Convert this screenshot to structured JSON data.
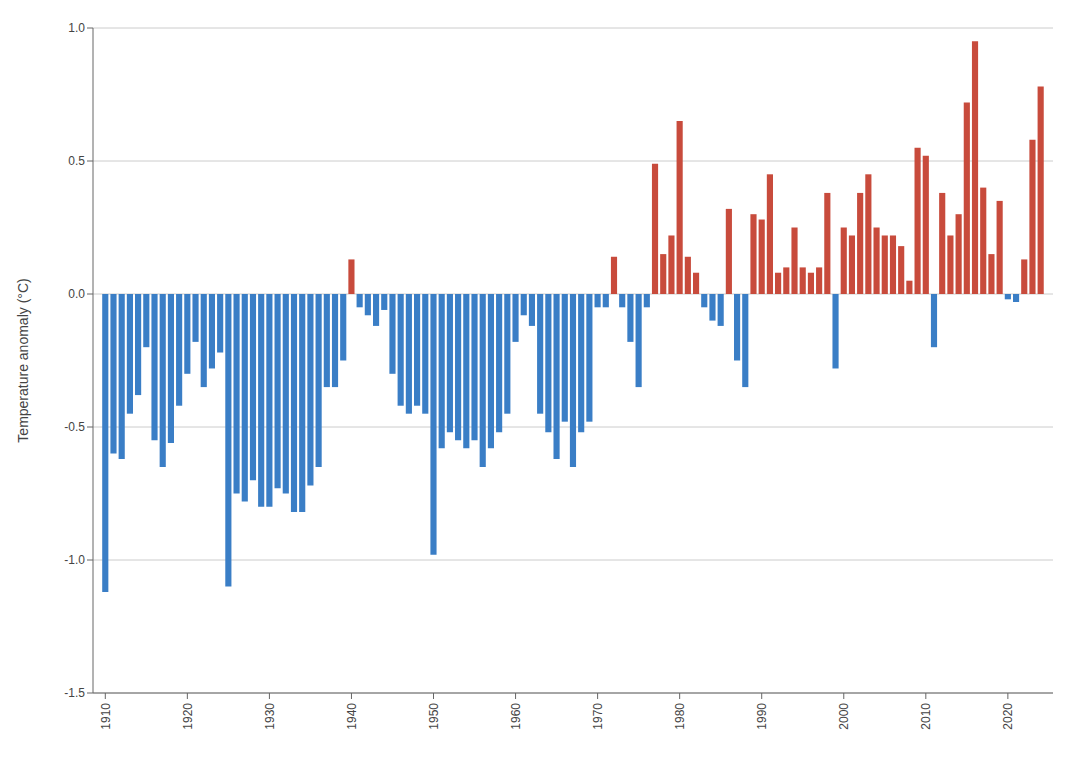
{
  "chart_data": {
    "type": "bar",
    "ylabel": "Temperature anomaly (°C)",
    "x": [
      1910,
      1911,
      1912,
      1913,
      1914,
      1915,
      1916,
      1917,
      1918,
      1919,
      1920,
      1921,
      1922,
      1923,
      1924,
      1925,
      1926,
      1927,
      1928,
      1929,
      1930,
      1931,
      1932,
      1933,
      1934,
      1935,
      1936,
      1937,
      1938,
      1939,
      1940,
      1941,
      1942,
      1943,
      1944,
      1945,
      1946,
      1947,
      1948,
      1949,
      1950,
      1951,
      1952,
      1953,
      1954,
      1955,
      1956,
      1957,
      1958,
      1959,
      1960,
      1961,
      1962,
      1963,
      1964,
      1965,
      1966,
      1967,
      1968,
      1969,
      1970,
      1971,
      1972,
      1973,
      1974,
      1975,
      1976,
      1977,
      1978,
      1979,
      1980,
      1981,
      1982,
      1983,
      1984,
      1985,
      1986,
      1987,
      1988,
      1989,
      1990,
      1991,
      1992,
      1993,
      1994,
      1995,
      1996,
      1997,
      1998,
      1999,
      2000,
      2001,
      2002,
      2003,
      2004,
      2005,
      2006,
      2007,
      2008,
      2009,
      2010,
      2011,
      2012,
      2013,
      2014,
      2015,
      2016,
      2017,
      2018,
      2019,
      2020,
      2021,
      2022,
      2023,
      2024
    ],
    "values": [
      -1.12,
      -0.6,
      -0.62,
      -0.45,
      -0.38,
      -0.2,
      -0.55,
      -0.65,
      -0.56,
      -0.42,
      -0.3,
      -0.18,
      -0.35,
      -0.28,
      -0.22,
      -1.1,
      -0.75,
      -0.78,
      -0.7,
      -0.8,
      -0.8,
      -0.73,
      -0.75,
      -0.82,
      -0.82,
      -0.72,
      -0.65,
      -0.35,
      -0.35,
      -0.25,
      0.13,
      -0.05,
      -0.08,
      -0.12,
      -0.06,
      -0.3,
      -0.42,
      -0.45,
      -0.42,
      -0.45,
      -0.98,
      -0.58,
      -0.52,
      -0.55,
      -0.58,
      -0.55,
      -0.65,
      -0.58,
      -0.52,
      -0.45,
      -0.18,
      -0.08,
      -0.12,
      -0.45,
      -0.52,
      -0.62,
      -0.48,
      -0.65,
      -0.52,
      -0.48,
      -0.05,
      -0.05,
      0.14,
      -0.05,
      -0.18,
      -0.35,
      -0.05,
      0.49,
      0.15,
      0.22,
      0.65,
      0.14,
      0.08,
      -0.05,
      -0.1,
      -0.12,
      0.32,
      -0.25,
      -0.35,
      0.3,
      0.28,
      0.45,
      0.08,
      0.1,
      0.25,
      0.1,
      0.08,
      0.1,
      0.38,
      -0.28,
      0.25,
      0.22,
      0.38,
      0.45,
      0.25,
      0.22,
      0.22,
      0.18,
      0.05,
      0.55,
      0.52,
      -0.2,
      0.38,
      0.22,
      0.3,
      0.72,
      0.95,
      0.4,
      0.15,
      0.35,
      -0.02,
      -0.03,
      0.13,
      0.58,
      0.78
    ],
    "colors": [
      "#3A7EC6",
      "#3A7EC6",
      "#3A7EC6",
      "#3A7EC6",
      "#3A7EC6",
      "#3A7EC6",
      "#3A7EC6",
      "#3A7EC6",
      "#3A7EC6",
      "#3A7EC6",
      "#3A7EC6",
      "#3A7EC6",
      "#3A7EC6",
      "#3A7EC6",
      "#3A7EC6",
      "#3A7EC6",
      "#3A7EC6",
      "#3A7EC6",
      "#3A7EC6",
      "#3A7EC6",
      "#3A7EC6",
      "#3A7EC6",
      "#3A7EC6",
      "#3A7EC6",
      "#3A7EC6",
      "#3A7EC6",
      "#3A7EC6",
      "#3A7EC6",
      "#3A7EC6",
      "#3A7EC6",
      "#C84B3C",
      "#3A7EC6",
      "#3A7EC6",
      "#3A7EC6",
      "#3A7EC6",
      "#3A7EC6",
      "#3A7EC6",
      "#3A7EC6",
      "#3A7EC6",
      "#3A7EC6",
      "#3A7EC6",
      "#3A7EC6",
      "#3A7EC6",
      "#3A7EC6",
      "#3A7EC6",
      "#3A7EC6",
      "#3A7EC6",
      "#3A7EC6",
      "#3A7EC6",
      "#3A7EC6",
      "#3A7EC6",
      "#3A7EC6",
      "#3A7EC6",
      "#3A7EC6",
      "#3A7EC6",
      "#3A7EC6",
      "#3A7EC6",
      "#3A7EC6",
      "#3A7EC6",
      "#3A7EC6",
      "#3A7EC6",
      "#3A7EC6",
      "#C84B3C",
      "#3A7EC6",
      "#3A7EC6",
      "#3A7EC6",
      "#3A7EC6",
      "#C84B3C",
      "#C84B3C",
      "#C84B3C",
      "#C84B3C",
      "#C84B3C",
      "#C84B3C",
      "#3A7EC6",
      "#3A7EC6",
      "#3A7EC6",
      "#C84B3C",
      "#3A7EC6",
      "#3A7EC6",
      "#C84B3C",
      "#C84B3C",
      "#C84B3C",
      "#C84B3C",
      "#C84B3C",
      "#C84B3C",
      "#C84B3C",
      "#C84B3C",
      "#C84B3C",
      "#C84B3C",
      "#3A7EC6",
      "#C84B3C",
      "#C84B3C",
      "#C84B3C",
      "#C84B3C",
      "#C84B3C",
      "#C84B3C",
      "#C84B3C",
      "#C84B3C",
      "#C84B3C",
      "#C84B3C",
      "#C84B3C",
      "#3A7EC6",
      "#C84B3C",
      "#C84B3C",
      "#C84B3C",
      "#C84B3C",
      "#C84B3C",
      "#C84B3C",
      "#C84B3C",
      "#C84B3C",
      "#3A7EC6",
      "#3A7EC6",
      "#C84B3C",
      "#C84B3C",
      "#C84B3C"
    ],
    "xlim": [
      1908.5,
      2025.5
    ],
    "xticks": [
      1910,
      1920,
      1930,
      1940,
      1950,
      1960,
      1970,
      1980,
      1990,
      2000,
      2010,
      2020
    ],
    "ylim": [
      -1.5,
      1.0
    ],
    "yticks": [
      -1.5,
      {
        "value": -1.0,
        "label": "-1.0"
      },
      -0.5,
      {
        "value": 0.0,
        "label": "0.0"
      },
      0.5,
      {
        "value": 1.0,
        "label": "1.0"
      }
    ],
    "grid": true
  }
}
